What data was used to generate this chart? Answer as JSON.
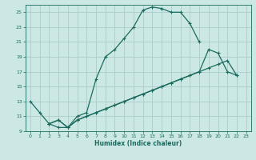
{
  "xlabel": "Humidex (Indice chaleur)",
  "bg_color": "#cce8e4",
  "grid_color": "#aaccca",
  "line_color": "#1a6b5e",
  "xlim": [
    -0.5,
    23.5
  ],
  "ylim": [
    9,
    26
  ],
  "xticks": [
    0,
    1,
    2,
    3,
    4,
    5,
    6,
    7,
    8,
    9,
    10,
    11,
    12,
    13,
    14,
    15,
    16,
    17,
    18,
    19,
    20,
    21,
    22,
    23
  ],
  "yticks": [
    9,
    11,
    13,
    15,
    17,
    19,
    21,
    23,
    25
  ],
  "series": [
    {
      "x": [
        0,
        1,
        2,
        3,
        4,
        5,
        6,
        7,
        8,
        9,
        10,
        11,
        12,
        13,
        14,
        15,
        16,
        17,
        18
      ],
      "y": [
        13,
        11.5,
        10,
        9.5,
        9.5,
        11,
        11.5,
        16,
        19,
        20,
        21.5,
        23,
        25.3,
        25.7,
        25.5,
        25,
        25,
        23.5,
        21
      ]
    },
    {
      "x": [
        2,
        3,
        4,
        5,
        6,
        7,
        8,
        9,
        10,
        11,
        12,
        13,
        14,
        15,
        16,
        17,
        18,
        19,
        20,
        21,
        22
      ],
      "y": [
        10,
        10.5,
        9.5,
        10.5,
        11,
        11.5,
        12,
        12.5,
        13,
        13.5,
        14,
        14.5,
        15,
        15.5,
        16,
        16.5,
        17,
        20,
        19.5,
        17,
        16.5
      ]
    },
    {
      "x": [
        2,
        3,
        4,
        5,
        6,
        7,
        8,
        9,
        10,
        11,
        12,
        13,
        14,
        15,
        16,
        17,
        18,
        19,
        20,
        21,
        22
      ],
      "y": [
        10,
        10.5,
        9.5,
        10.5,
        11,
        11.5,
        12,
        12.5,
        13,
        13.5,
        14,
        14.5,
        15,
        15.5,
        16,
        16.5,
        17,
        17.5,
        18,
        18.5,
        16.5
      ]
    }
  ]
}
